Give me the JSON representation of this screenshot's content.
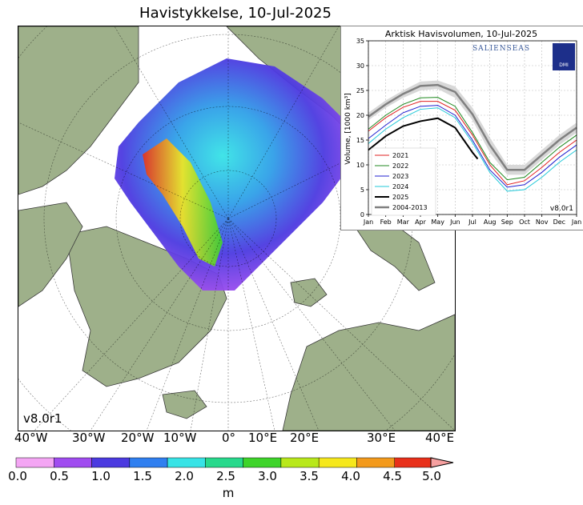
{
  "title": "Havistykkelse, 10-Jul-2025",
  "map": {
    "version": "v8.0r1",
    "lon_labels": [
      "40°W",
      "30°W",
      "20°W",
      "10°W",
      "0°",
      "10°E",
      "20°E",
      "30°E",
      "40°E"
    ],
    "colors": {
      "ocean": "#ffffff",
      "land": "#9eb08a",
      "land_edge": "#3a3a3a",
      "lakes": "#a7c8e8"
    }
  },
  "colorbar": {
    "unit": "m",
    "ticks": [
      "0.0",
      "0.5",
      "1.0",
      "1.5",
      "2.0",
      "2.5",
      "3.0",
      "3.5",
      "4.0",
      "4.5",
      "5.0"
    ],
    "colors": [
      "#f4a6f4",
      "#a04cf0",
      "#4b3ae0",
      "#2f7ff0",
      "#37e3e6",
      "#27d98c",
      "#3ed42a",
      "#b8e81a",
      "#f6e81c",
      "#f39a1c",
      "#e8301a",
      "#f6a0a0"
    ]
  },
  "inset": {
    "title": "Arktisk Havisvolumen, 10-Jul-2025",
    "logo_text": "SALIENSEAS",
    "logo_badge": "DMI",
    "version": "v8.0r1",
    "chart_data": {
      "type": "line",
      "title": "Arktisk Havisvolumen, 10-Jul-2025",
      "ylabel": "Volume, [1000 km³]",
      "xlabel": "",
      "ylim": [
        0,
        35
      ],
      "yticks": [
        0,
        5,
        10,
        15,
        20,
        25,
        30,
        35
      ],
      "x_ticks": [
        "Jan",
        "Feb",
        "Mar",
        "Apr",
        "May",
        "Jun",
        "Jul",
        "Aug",
        "Sep",
        "Oct",
        "Nov",
        "Dec",
        "Jan"
      ],
      "grid": true,
      "legend_position": "lower-left",
      "x_months": [
        0,
        1,
        2,
        3,
        4,
        5,
        6,
        7,
        8,
        9,
        10,
        11,
        12
      ],
      "band_2004_2013": {
        "lower": [
          19.0,
          21.5,
          23.5,
          25.0,
          25.3,
          23.5,
          19.0,
          12.5,
          8.0,
          8.0,
          11.0,
          14.0,
          16.5
        ],
        "upper": [
          20.5,
          23.0,
          25.0,
          26.8,
          27.0,
          25.8,
          21.5,
          15.5,
          10.0,
          10.0,
          13.0,
          16.0,
          18.5
        ]
      },
      "series": [
        {
          "name": "2021",
          "color": "#e02020",
          "width": 1,
          "x": [
            0,
            1,
            2,
            3,
            4,
            5,
            6,
            7,
            8,
            9,
            10,
            11,
            12
          ],
          "values": [
            16.8,
            19.5,
            21.6,
            22.8,
            22.8,
            21.0,
            16.0,
            10.0,
            6.0,
            6.8,
            9.5,
            12.5,
            15.0
          ]
        },
        {
          "name": "2022",
          "color": "#208a20",
          "width": 1,
          "x": [
            0,
            1,
            2,
            3,
            4,
            5,
            6,
            7,
            8,
            9,
            10,
            11,
            12
          ],
          "values": [
            17.2,
            20.0,
            22.2,
            23.5,
            23.6,
            21.8,
            16.5,
            10.5,
            7.0,
            7.5,
            10.5,
            13.5,
            16.0
          ]
        },
        {
          "name": "2023",
          "color": "#2020d0",
          "width": 1,
          "x": [
            0,
            1,
            2,
            3,
            4,
            5,
            6,
            7,
            8,
            9,
            10,
            11,
            12
          ],
          "values": [
            15.3,
            18.0,
            20.5,
            21.8,
            22.0,
            20.0,
            15.0,
            9.0,
            5.5,
            6.0,
            8.5,
            11.5,
            14.0
          ]
        },
        {
          "name": "2024",
          "color": "#20c8d8",
          "width": 1,
          "x": [
            0,
            1,
            2,
            3,
            4,
            5,
            6,
            7,
            8,
            9,
            10,
            11,
            12
          ],
          "values": [
            14.3,
            17.2,
            19.5,
            21.2,
            21.5,
            19.5,
            14.5,
            8.5,
            4.7,
            5.0,
            7.5,
            10.5,
            13.0
          ]
        },
        {
          "name": "2025",
          "color": "#000000",
          "width": 2,
          "x": [
            0,
            1,
            2,
            3,
            4,
            5,
            6,
            6.3
          ],
          "values": [
            13.0,
            15.8,
            17.8,
            18.8,
            19.4,
            17.5,
            12.5,
            11.2
          ]
        },
        {
          "name": "2004-2013",
          "color": "#808080",
          "width": 2.5,
          "x": [
            0,
            1,
            2,
            3,
            4,
            5,
            6,
            7,
            8,
            9,
            10,
            11,
            12
          ],
          "values": [
            19.7,
            22.2,
            24.3,
            25.9,
            26.1,
            24.7,
            20.2,
            14.0,
            9.0,
            9.0,
            12.0,
            15.0,
            17.5
          ]
        }
      ]
    }
  }
}
